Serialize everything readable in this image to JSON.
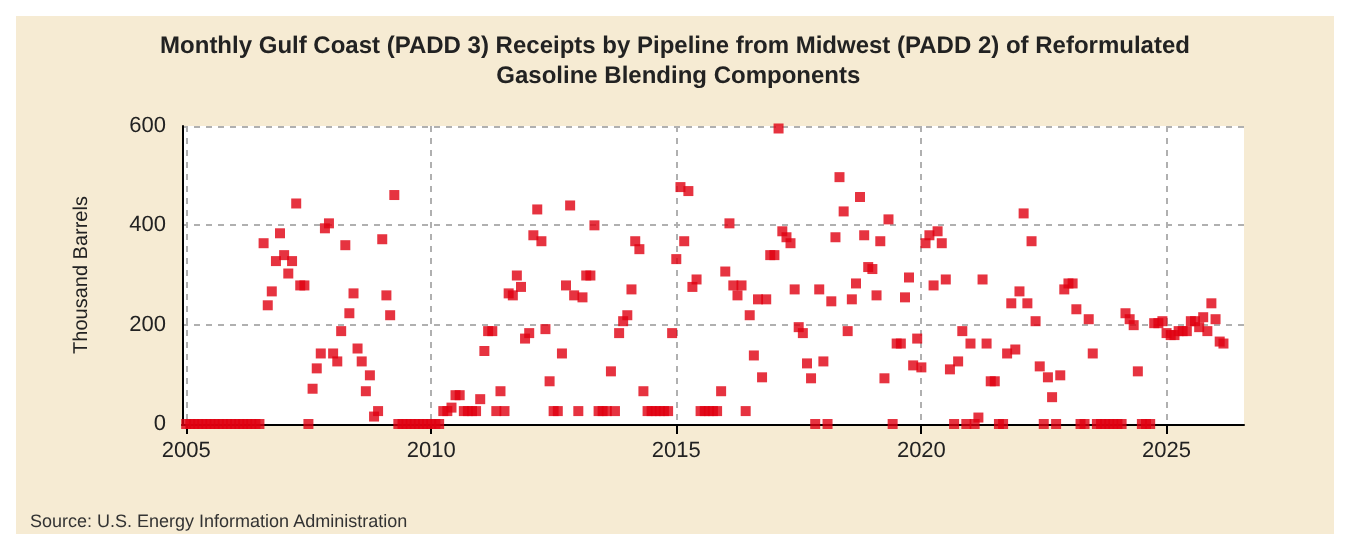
{
  "chart_data": {
    "type": "scatter",
    "title": "Monthly Gulf Coast (PADD 3) Receipts by Pipeline from Midwest (PADD 2) of Reformulated Gasoline Blending Components",
    "ylabel": "Thousand Barrels",
    "annotations": [
      "Source: U.S. Energy Information Administration"
    ],
    "x": [
      "2005-01",
      "2005-02",
      "2005-03",
      "2005-04",
      "2005-05",
      "2005-06",
      "2005-07",
      "2005-08",
      "2005-09",
      "2005-10",
      "2005-11",
      "2005-12",
      "2006-01",
      "2006-02",
      "2006-03",
      "2006-04",
      "2006-05",
      "2006-06",
      "2006-07",
      "2006-08",
      "2006-09",
      "2006-10",
      "2006-11",
      "2006-12",
      "2007-01",
      "2007-02",
      "2007-03",
      "2007-04",
      "2007-05",
      "2007-06",
      "2007-07",
      "2007-08",
      "2007-09",
      "2007-10",
      "2007-11",
      "2007-12",
      "2008-01",
      "2008-02",
      "2008-03",
      "2008-04",
      "2008-05",
      "2008-06",
      "2008-07",
      "2008-08",
      "2008-09",
      "2008-10",
      "2008-11",
      "2008-12",
      "2009-01",
      "2009-02",
      "2009-03",
      "2009-04",
      "2009-05",
      "2009-06",
      "2009-07",
      "2009-08",
      "2009-09",
      "2009-10",
      "2009-11",
      "2009-12",
      "2010-01",
      "2010-02",
      "2010-03",
      "2010-04",
      "2010-05",
      "2010-06",
      "2010-07",
      "2010-08",
      "2010-09",
      "2010-10",
      "2010-11",
      "2010-12",
      "2011-01",
      "2011-02",
      "2011-03",
      "2011-04",
      "2011-05",
      "2011-06",
      "2011-07",
      "2011-08",
      "2011-09",
      "2011-10",
      "2011-11",
      "2011-12",
      "2012-01",
      "2012-02",
      "2012-03",
      "2012-04",
      "2012-05",
      "2012-06",
      "2012-07",
      "2012-08",
      "2012-09",
      "2012-10",
      "2012-11",
      "2012-12",
      "2013-01",
      "2013-02",
      "2013-03",
      "2013-04",
      "2013-05",
      "2013-06",
      "2013-07",
      "2013-08",
      "2013-09",
      "2013-10",
      "2013-11",
      "2013-12",
      "2014-01",
      "2014-02",
      "2014-03",
      "2014-04",
      "2014-05",
      "2014-06",
      "2014-07",
      "2014-08",
      "2014-09",
      "2014-10",
      "2014-11",
      "2014-12",
      "2015-01",
      "2015-02",
      "2015-03",
      "2015-04",
      "2015-05",
      "2015-06",
      "2015-07",
      "2015-08",
      "2015-09",
      "2015-10",
      "2015-11",
      "2015-12",
      "2016-01",
      "2016-02",
      "2016-03",
      "2016-04",
      "2016-05",
      "2016-06",
      "2016-07",
      "2016-08",
      "2016-09",
      "2016-10",
      "2016-11",
      "2016-12",
      "2017-01",
      "2017-02",
      "2017-03",
      "2017-04",
      "2017-05",
      "2017-06",
      "2017-07",
      "2017-08",
      "2017-09",
      "2017-10",
      "2017-11",
      "2017-12",
      "2018-01",
      "2018-02",
      "2018-03",
      "2018-04",
      "2018-05",
      "2018-06",
      "2018-07",
      "2018-08",
      "2018-09",
      "2018-10",
      "2018-11",
      "2018-12",
      "2019-01",
      "2019-02",
      "2019-03",
      "2019-04",
      "2019-05",
      "2019-06",
      "2019-07",
      "2019-08",
      "2019-09",
      "2019-10",
      "2019-11",
      "2019-12",
      "2020-01",
      "2020-02",
      "2020-03",
      "2020-04",
      "2020-05",
      "2020-06",
      "2020-07",
      "2020-08",
      "2020-09",
      "2020-10",
      "2020-11",
      "2020-12",
      "2021-01",
      "2021-02",
      "2021-03",
      "2021-04",
      "2021-05",
      "2021-06",
      "2021-07",
      "2021-08",
      "2021-09",
      "2021-10",
      "2021-11",
      "2021-12",
      "2022-01",
      "2022-02",
      "2022-03",
      "2022-04",
      "2022-05",
      "2022-06",
      "2022-07",
      "2022-08",
      "2022-09",
      "2022-10",
      "2022-11",
      "2022-12",
      "2023-01",
      "2023-02",
      "2023-03",
      "2023-04",
      "2023-05",
      "2023-06",
      "2023-07",
      "2023-08",
      "2023-09",
      "2023-10",
      "2023-11",
      "2023-12",
      "2024-01",
      "2024-02",
      "2024-03",
      "2024-04",
      "2024-05",
      "2024-06",
      "2024-07",
      "2024-08",
      "2024-09",
      "2024-10",
      "2024-11",
      "2024-12",
      "2025-01",
      "2025-02",
      "2025-03",
      "2025-04",
      "2025-05",
      "2025-06",
      "2025-07",
      "2025-08",
      "2025-09",
      "2025-10",
      "2025-11",
      "2025-12",
      "2026-01",
      "2026-02",
      "2026-03"
    ],
    "values": [
      0,
      0,
      0,
      0,
      0,
      0,
      0,
      0,
      0,
      0,
      0,
      0,
      0,
      0,
      0,
      0,
      0,
      0,
      0,
      364,
      239,
      267,
      328,
      384,
      340,
      303,
      328,
      444,
      279,
      279,
      0,
      71,
      112,
      142,
      394,
      404,
      142,
      126,
      187,
      360,
      223,
      263,
      152,
      126,
      66,
      98,
      15,
      26,
      372,
      259,
      219,
      461,
      0,
      0,
      0,
      0,
      0,
      0,
      0,
      0,
      0,
      0,
      0,
      26,
      26,
      33,
      58,
      58,
      26,
      26,
      26,
      26,
      50,
      147,
      187,
      187,
      26,
      66,
      26,
      263,
      259,
      299,
      276,
      172,
      183,
      380,
      432,
      368,
      191,
      86,
      26,
      26,
      142,
      279,
      440,
      259,
      26,
      255,
      299,
      299,
      400,
      26,
      26,
      26,
      106,
      26,
      183,
      207,
      219,
      271,
      368,
      352,
      66,
      26,
      26,
      26,
      26,
      26,
      26,
      183,
      332,
      477,
      368,
      469,
      276,
      291,
      26,
      26,
      26,
      26,
      26,
      66,
      307,
      404,
      279,
      259,
      279,
      26,
      219,
      138,
      251,
      94,
      251,
      340,
      340,
      595,
      388,
      376,
      364,
      271,
      195,
      183,
      122,
      92,
      0,
      271,
      126,
      0,
      247,
      376,
      497,
      428,
      187,
      251,
      283,
      457,
      380,
      316,
      312,
      259,
      368,
      92,
      412,
      0,
      162,
      162,
      255,
      295,
      118,
      172,
      114,
      364,
      380,
      279,
      388,
      364,
      291,
      110,
      0,
      126,
      187,
      0,
      162,
      0,
      13,
      291,
      162,
      86,
      86,
      0,
      0,
      142,
      243,
      150,
      267,
      424,
      243,
      368,
      207,
      116,
      0,
      94,
      54,
      0,
      98,
      271,
      283,
      283,
      231,
      0,
      0,
      211,
      142,
      0,
      0,
      0,
      0,
      0,
      0,
      0,
      223,
      211,
      199,
      106,
      0,
      0,
      0,
      203,
      203,
      207,
      183,
      179,
      179,
      187,
      187,
      187,
      207,
      207,
      195,
      215,
      187,
      243,
      211,
      166,
      162
    ],
    "color": "#e00010",
    "marker": "square",
    "grid": true,
    "xlim": [
      "2004-12",
      "2026-08"
    ],
    "xticks": [
      "2005",
      "2010",
      "2015",
      "2020",
      "2025"
    ],
    "ylim": [
      0,
      600
    ],
    "yticks": [
      0,
      200,
      400,
      600
    ]
  }
}
